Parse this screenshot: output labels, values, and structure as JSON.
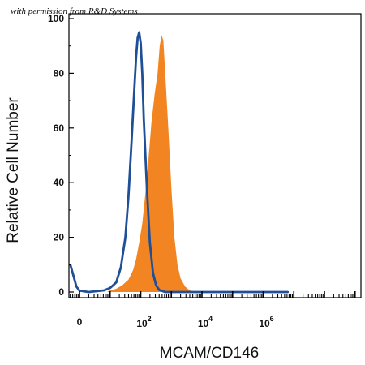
{
  "watermark": "with permission from R&D Systems",
  "chart_data": {
    "type": "area",
    "title": "",
    "xlabel": "MCAM/CD146",
    "ylabel": "Relative Cell Number",
    "x_scale": "log",
    "x_tick_labels": [
      {
        "value": 0,
        "label": "0"
      },
      {
        "value": 2,
        "exponent_base": "10",
        "exponent": "2"
      },
      {
        "value": 4,
        "exponent_base": "10",
        "exponent": "4"
      },
      {
        "value": 6,
        "exponent_base": "10",
        "exponent": "6"
      }
    ],
    "y_ticks": [
      0,
      20,
      40,
      60,
      80,
      100
    ],
    "ylim": [
      0,
      100
    ],
    "series": [
      {
        "style": "filled",
        "color": "#f28522",
        "points": [
          [
            0.0,
            0
          ],
          [
            0.9,
            0
          ],
          [
            1.0,
            0.6
          ],
          [
            1.2,
            1.2
          ],
          [
            1.4,
            2.5
          ],
          [
            1.6,
            4.5
          ],
          [
            1.75,
            8
          ],
          [
            1.85,
            12
          ],
          [
            1.95,
            18
          ],
          [
            2.05,
            25
          ],
          [
            2.15,
            36
          ],
          [
            2.25,
            48
          ],
          [
            2.35,
            62
          ],
          [
            2.45,
            72
          ],
          [
            2.55,
            80
          ],
          [
            2.62,
            90
          ],
          [
            2.68,
            94
          ],
          [
            2.74,
            92
          ],
          [
            2.8,
            80
          ],
          [
            2.9,
            60
          ],
          [
            3.0,
            38
          ],
          [
            3.1,
            20
          ],
          [
            3.2,
            10
          ],
          [
            3.3,
            5
          ],
          [
            3.45,
            2
          ],
          [
            3.6,
            0.6
          ],
          [
            3.8,
            0
          ],
          [
            6.8,
            0
          ]
        ]
      },
      {
        "style": "line",
        "color": "#1f4f96",
        "points": [
          [
            -0.3,
            10
          ],
          [
            -0.2,
            6
          ],
          [
            -0.1,
            2
          ],
          [
            0.0,
            0.5
          ],
          [
            0.3,
            0
          ],
          [
            0.8,
            0.6
          ],
          [
            1.0,
            1.5
          ],
          [
            1.2,
            3.5
          ],
          [
            1.35,
            9
          ],
          [
            1.5,
            20
          ],
          [
            1.6,
            35
          ],
          [
            1.7,
            55
          ],
          [
            1.78,
            72
          ],
          [
            1.85,
            86
          ],
          [
            1.9,
            93
          ],
          [
            1.95,
            95
          ],
          [
            2.0,
            91
          ],
          [
            2.05,
            80
          ],
          [
            2.1,
            63
          ],
          [
            2.2,
            38
          ],
          [
            2.3,
            18
          ],
          [
            2.4,
            7
          ],
          [
            2.5,
            2.5
          ],
          [
            2.6,
            0.8
          ],
          [
            2.8,
            0
          ],
          [
            6.8,
            0
          ]
        ]
      }
    ]
  }
}
